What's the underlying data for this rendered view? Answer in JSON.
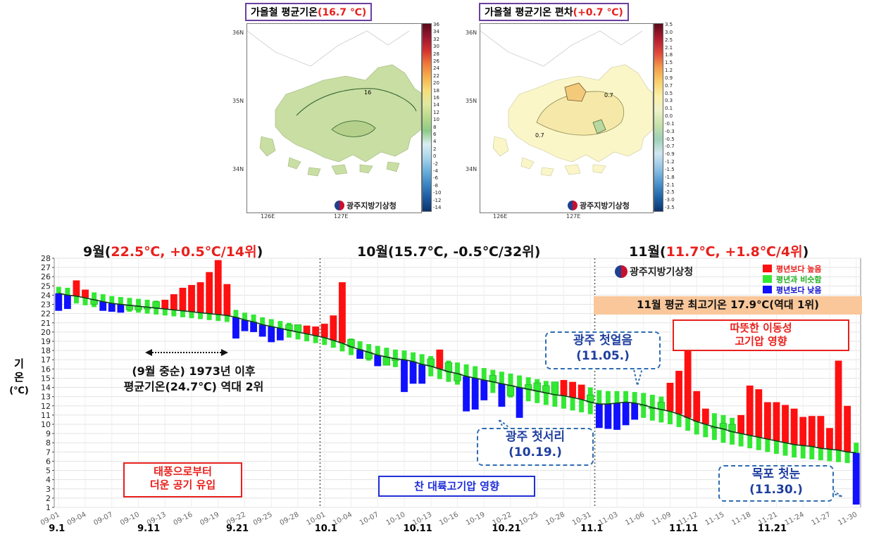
{
  "maps": {
    "left": {
      "title_prefix": "가을철 평균기온",
      "title_value": "(16.7 ℃)",
      "contour_label": "16",
      "colorbar": [
        "36",
        "34",
        "32",
        "30",
        "28",
        "26",
        "24",
        "22",
        "20",
        "18",
        "16",
        "14",
        "12",
        "10",
        "8",
        "6",
        "4",
        "2",
        "0",
        "-2",
        "-4",
        "-6",
        "-8",
        "-10",
        "-12",
        "-14"
      ],
      "lat_labels": [
        "36N",
        "35N",
        "34N"
      ],
      "lon_labels": [
        "126E",
        "127E"
      ],
      "logo_text": "광주지방기상청"
    },
    "right": {
      "title_prefix": "가을철 평균기온 편차",
      "title_value": "(+0.7 ℃)",
      "contour_label": "0.7",
      "contour_label2": "0.7",
      "colorbar": [
        "3.5",
        "3.0",
        "2.5",
        "2.1",
        "1.8",
        "1.5",
        "1.2",
        "0.9",
        "0.7",
        "0.5",
        "0.3",
        "0.1",
        "0.0",
        "-0.1",
        "-0.3",
        "-0.5",
        "-0.7",
        "-0.9",
        "-1.2",
        "-1.5",
        "-1.8",
        "-2.1",
        "-2.5",
        "-3.0",
        "-3.5"
      ],
      "lat_labels": [
        "36N",
        "35N",
        "34N"
      ],
      "lon_labels": [
        "126E",
        "127E"
      ],
      "logo_text": "광주지방기상청"
    }
  },
  "months": {
    "sep": {
      "label": "9월(",
      "value": "22.5℃, +0.5℃/14위",
      "close": ")"
    },
    "oct": {
      "label": "10월(15.7℃, -0.5℃/32위)"
    },
    "nov": {
      "label": "11월(",
      "value": "11.7℃, +1.8℃/4위",
      "close": ")"
    }
  },
  "annotations": {
    "sep_mid_line1": "(9월 중순) 1973년 이후",
    "sep_mid_line2": "평균기온(24.7℃) 역대 2위",
    "typhoon_line1": "태풍으로부터",
    "typhoon_line2": "더운 공기 유입",
    "continental": "찬 대륙고기압 영향",
    "frost_line1": "광주 첫서리",
    "frost_line2": "(10.19.)",
    "ice_line1": "광주 첫얼음",
    "ice_line2": "(11.05.)",
    "snow_line1": "목포 첫눈",
    "snow_line2": "(11.30.)",
    "nov_max": "11월 평균 최고기온 17.9℃(역대 1위)",
    "warm_line1": "따뜻한 이동성",
    "warm_line2": "고기압 영향",
    "logo_text": "광주지방기상청"
  },
  "legend": {
    "above": "평년보다 높음",
    "similar": "평년과 비슷함",
    "below": "평년보다 낮음"
  },
  "colors": {
    "above": "#ff1010",
    "similar": "#33e833",
    "below": "#1010ff",
    "accent_red": "#e8201c"
  },
  "y_axis_label": [
    "기",
    "온",
    "(℃)"
  ],
  "x_major_labels": [
    "9.1",
    "9.11",
    "9.21",
    "10.1",
    "10.11",
    "10.21",
    "11.1",
    "11.11",
    "11.21"
  ],
  "chart_data": {
    "type": "bar",
    "ylim": [
      1,
      28
    ],
    "yticks": [
      1,
      2,
      3,
      4,
      5,
      6,
      7,
      8,
      9,
      10,
      11,
      12,
      13,
      14,
      15,
      16,
      17,
      18,
      19,
      20,
      21,
      22,
      23,
      24,
      25,
      26,
      27,
      28
    ],
    "x_tick_labels": [
      "09-01",
      "09-04",
      "09-07",
      "09-10",
      "09-13",
      "09-16",
      "09-19",
      "09-22",
      "09-25",
      "09-28",
      "10-01",
      "10-04",
      "10-07",
      "10-10",
      "10-13",
      "10-16",
      "10-19",
      "10-22",
      "10-25",
      "10-28",
      "10-31",
      "11-03",
      "11-06",
      "11-09",
      "11-12",
      "11-15",
      "11-18",
      "11-21",
      "11-24",
      "11-27",
      "11-30"
    ],
    "grid": true,
    "series": [
      {
        "name": "평년보다 높음 / 평년과 비슷함 / 평년보다 낮음",
        "role": "daily_mean",
        "values": [
          22.3,
          22.5,
          25.6,
          24.6,
          23.0,
          22.3,
          22.2,
          22.1,
          22.4,
          22.4,
          22.5,
          23.3,
          23.5,
          24.1,
          24.8,
          25.1,
          25.4,
          26.5,
          27.8,
          25.2,
          19.3,
          20.1,
          20.0,
          19.5,
          18.9,
          19.1,
          20.8,
          20.8,
          20.7,
          20.6,
          20.9,
          21.8,
          25.4,
          19.2,
          17.1,
          17.1,
          16.3,
          16.4,
          16.9,
          13.5,
          14.4,
          14.4,
          17.1,
          18.1,
          16.7,
          14.7,
          11.4,
          11.6,
          12.6,
          15.3,
          11.9,
          13.1,
          10.7,
          14.3,
          14.5,
          14.2,
          14.6,
          14.8,
          14.6,
          14.3,
          13.2,
          9.6,
          9.5,
          9.4,
          9.9,
          10.5,
          12.1,
          11.8,
          12.4,
          14.5,
          15.8,
          18.1,
          13.6,
          11.7,
          9.6,
          10.1,
          10.0,
          11.0,
          14.2,
          13.8,
          12.4,
          12.4,
          12.1,
          11.7,
          10.8,
          10.9,
          10.9,
          9.6,
          16.9,
          12.0,
          1.3
        ]
      },
      {
        "name": "normal_upper",
        "role": "band",
        "values": [
          24.9,
          24.8,
          24.7,
          24.5,
          24.3,
          24.1,
          23.9,
          23.8,
          23.7,
          23.6,
          23.5,
          23.4,
          23.3,
          23.2,
          23.1,
          23.0,
          22.9,
          22.8,
          22.7,
          22.6,
          22.4,
          22.1,
          21.9,
          21.6,
          21.4,
          21.2,
          21.0,
          20.8,
          20.6,
          20.4,
          20.2,
          20.0,
          19.7,
          19.3,
          19.0,
          18.7,
          18.5,
          18.3,
          18.1,
          18.0,
          17.8,
          17.6,
          17.4,
          17.2,
          16.9,
          16.7,
          16.5,
          16.3,
          16.1,
          15.9,
          15.7,
          15.5,
          15.3,
          15.1,
          14.9,
          14.7,
          14.6,
          14.5,
          14.4,
          14.2,
          14.0,
          13.7,
          13.6,
          13.6,
          13.6,
          13.5,
          13.4,
          13.2,
          13.0,
          12.8,
          12.5,
          12.2,
          11.8,
          11.5,
          11.2,
          11.0,
          10.7,
          10.5,
          10.3,
          10.1,
          9.9,
          9.7,
          9.5,
          9.3,
          9.1,
          9.0,
          8.8,
          8.6,
          8.4,
          8.2,
          8.0
        ]
      },
      {
        "name": "normal_lower",
        "role": "band",
        "values": [
          23.4,
          23.3,
          23.1,
          22.9,
          22.7,
          22.5,
          22.4,
          22.3,
          22.2,
          22.1,
          22.0,
          21.9,
          21.8,
          21.7,
          21.6,
          21.5,
          21.4,
          21.3,
          21.2,
          21.1,
          20.8,
          20.5,
          20.3,
          20.0,
          19.8,
          19.6,
          19.4,
          19.2,
          19.0,
          18.8,
          18.6,
          18.3,
          17.9,
          17.5,
          17.2,
          16.9,
          16.6,
          16.4,
          16.2,
          16.0,
          15.8,
          15.5,
          15.2,
          14.9,
          14.6,
          14.3,
          14.0,
          13.8,
          13.6,
          13.4,
          13.1,
          12.9,
          12.7,
          12.5,
          12.3,
          12.1,
          11.9,
          11.7,
          11.5,
          11.3,
          11.1,
          10.9,
          10.9,
          10.9,
          10.9,
          10.8,
          10.7,
          10.4,
          10.2,
          10.0,
          9.7,
          9.3,
          8.9,
          8.6,
          8.3,
          8.0,
          7.8,
          7.6,
          7.4,
          7.2,
          7.0,
          6.8,
          6.6,
          6.4,
          6.3,
          6.2,
          6.1,
          6.0,
          5.9,
          5.8,
          5.7
        ]
      },
      {
        "name": "normal_line",
        "role": "line",
        "values": [
          24.2,
          24.0,
          23.9,
          23.7,
          23.5,
          23.3,
          23.1,
          23.0,
          22.9,
          22.8,
          22.7,
          22.6,
          22.5,
          22.4,
          22.3,
          22.2,
          22.1,
          22.0,
          21.9,
          21.8,
          21.6,
          21.3,
          21.1,
          20.8,
          20.6,
          20.4,
          20.2,
          20.0,
          19.8,
          19.6,
          19.4,
          19.1,
          18.8,
          18.4,
          18.1,
          17.8,
          17.5,
          17.3,
          17.1,
          17.0,
          16.8,
          16.5,
          16.3,
          16.0,
          15.7,
          15.5,
          15.2,
          15.0,
          14.8,
          14.6,
          14.4,
          14.2,
          14.0,
          13.8,
          13.6,
          13.4,
          13.2,
          13.1,
          12.9,
          12.7,
          12.4,
          12.2,
          12.2,
          12.3,
          12.4,
          12.3,
          12.1,
          11.8,
          11.6,
          11.4,
          11.1,
          10.7,
          10.3,
          10.0,
          9.7,
          9.5,
          9.2,
          9.0,
          8.8,
          8.6,
          8.4,
          8.2,
          8.0,
          7.8,
          7.7,
          7.6,
          7.4,
          7.3,
          7.2,
          7.0,
          6.9
        ]
      }
    ]
  }
}
